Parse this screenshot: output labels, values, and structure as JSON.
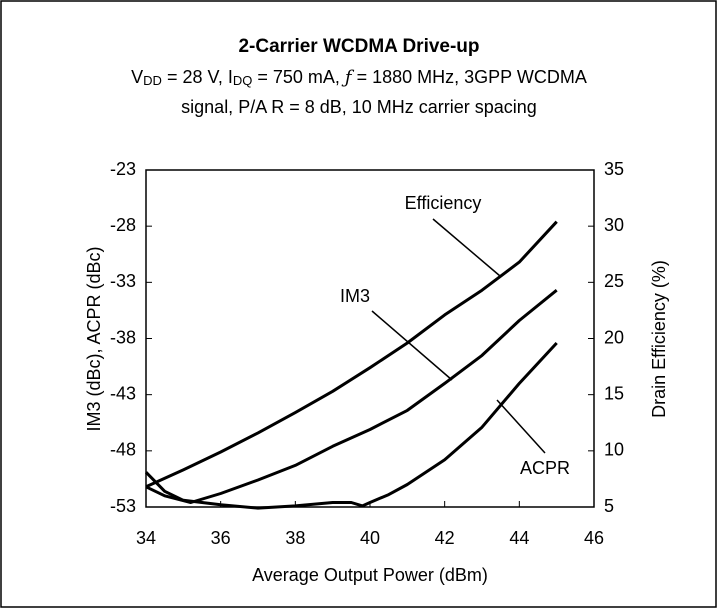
{
  "chart_data": {
    "type": "line",
    "title": "2-Carrier WCDMA Drive-up",
    "subtitle": [
      [
        {
          "text": "V"
        },
        {
          "text": "DD",
          "sub": true
        },
        {
          "text": " = 28 V, I"
        },
        {
          "text": "DQ",
          "sub": true
        },
        {
          "text": " = 750 mA, "
        },
        {
          "text": "ƒ",
          "italic": true
        },
        {
          "text": " = 1880 MHz, 3GPP WCDMA"
        }
      ],
      [
        {
          "text": "signal, P/A R = 8 dB, 10 MHz carrier spacing"
        }
      ]
    ],
    "x_label": "Average Output Power (dBm)",
    "y_label": "IM3 (dBc), ACPR (dBc)",
    "y2_label": "Drain Efficiency (%)",
    "annotations": [
      "Efficiency",
      "IM3",
      "ACPR"
    ],
    "xlim": [
      34,
      46
    ],
    "xticks": [
      34,
      36,
      38,
      40,
      42,
      44,
      46
    ],
    "ylim": [
      -53,
      -23
    ],
    "yticks": [
      -53,
      -48,
      -43,
      -38,
      -33,
      -28,
      -23
    ],
    "y2lim": [
      5,
      35
    ],
    "y2ticks": [
      5,
      10,
      15,
      20,
      25,
      30,
      35
    ],
    "grid": false,
    "series": [
      {
        "name": "Efficiency",
        "color": "#000000",
        "axis": "y2",
        "x": [
          34,
          35,
          36,
          37,
          38,
          39,
          40,
          41,
          42,
          43,
          44,
          45
        ],
        "values": [
          6.8,
          8.3,
          9.9,
          11.6,
          13.4,
          15.3,
          17.4,
          19.6,
          22.1,
          24.3,
          26.8,
          30.4
        ]
      },
      {
        "name": "IM3",
        "color": "#000000",
        "x": [
          34,
          34.5,
          35.2,
          36,
          37,
          38,
          39,
          40,
          41,
          42,
          43,
          44,
          45
        ],
        "values": [
          -51.2,
          -52.0,
          -52.6,
          -51.8,
          -50.6,
          -49.3,
          -47.6,
          -46.1,
          -44.4,
          -42.0,
          -39.5,
          -36.4,
          -33.7
        ]
      },
      {
        "name": "ACPR",
        "color": "#000000",
        "x": [
          34,
          34.5,
          35,
          36,
          37,
          38,
          39,
          39.5,
          39.8,
          40,
          40.5,
          41,
          42,
          43,
          44,
          45
        ],
        "values": [
          -49.9,
          -51.6,
          -52.4,
          -52.8,
          -53.1,
          -52.9,
          -52.6,
          -52.6,
          -52.9,
          -52.6,
          -51.9,
          -51.0,
          -48.8,
          -45.9,
          -42.0,
          -38.4
        ]
      }
    ]
  }
}
